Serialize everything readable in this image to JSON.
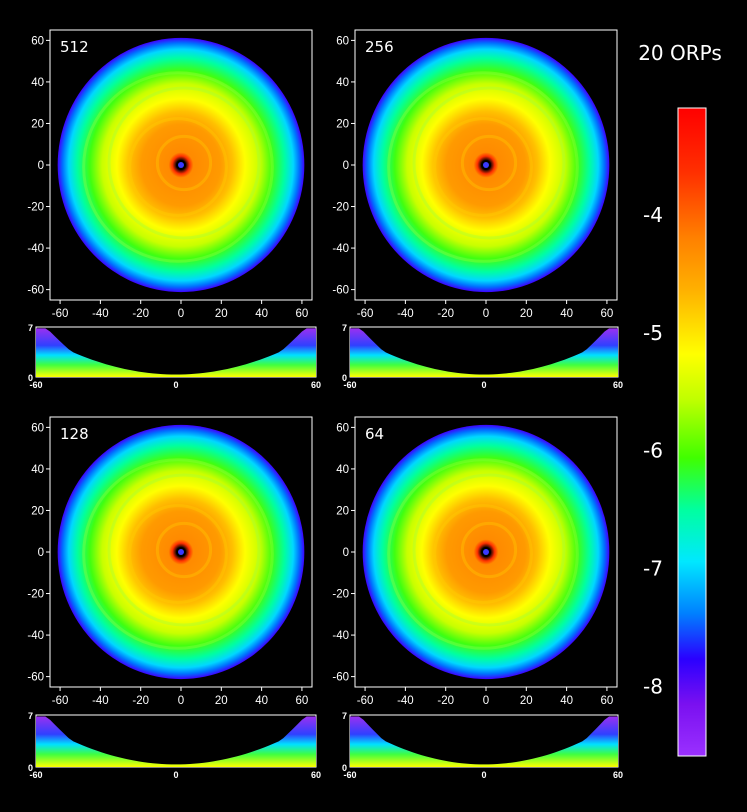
{
  "chart_data": {
    "type": "heatmap",
    "colorbar": {
      "title": "20 ORPs",
      "ticks": [
        -4,
        -5,
        -6,
        -7,
        -8
      ],
      "tick_labels": [
        "-4",
        "-5",
        "-6",
        "-7",
        "-8"
      ],
      "range": [
        -8.6,
        -3.1
      ],
      "colors": [
        "#7a00e0",
        "#a020f0",
        "#3000ff",
        "#0080ff",
        "#00e5ff",
        "#00ff80",
        "#40ff00",
        "#c0ff00",
        "#ffff00",
        "#ffb000",
        "#ff8000",
        "#ff3000",
        "#ff0000"
      ]
    },
    "panels": [
      {
        "label": "512",
        "face_on": {
          "xlim": [
            -65,
            65
          ],
          "ylim": [
            -65,
            65
          ],
          "x_ticks": [
            -60,
            -40,
            -20,
            0,
            20,
            40,
            60
          ],
          "y_ticks": [
            60,
            40,
            20,
            0,
            -20,
            -40,
            -60
          ],
          "x_tick_labels": [
            "-60",
            "-40",
            "-20",
            "0",
            "20",
            "40",
            "60"
          ],
          "y_tick_labels": [
            "60",
            "40",
            "20",
            "0",
            "-20",
            "-40",
            "-60"
          ]
        },
        "edge_on": {
          "xlim": [
            -60,
            60
          ],
          "ylim": [
            0,
            7
          ],
          "x_ticks": [
            -60,
            0,
            60
          ],
          "x_tick_labels": [
            "-60",
            "0",
            "60"
          ],
          "y_ticks": [
            7,
            0
          ],
          "y_tick_labels": [
            "7",
            "0"
          ]
        }
      },
      {
        "label": "256",
        "face_on": {
          "xlim": [
            -65,
            65
          ],
          "ylim": [
            -65,
            65
          ],
          "x_ticks": [
            -60,
            -40,
            -20,
            0,
            20,
            40,
            60
          ],
          "y_ticks": [
            60,
            40,
            20,
            0,
            -20,
            -40,
            -60
          ],
          "x_tick_labels": [
            "-60",
            "-40",
            "-20",
            "0",
            "20",
            "40",
            "60"
          ],
          "y_tick_labels": [
            "60",
            "40",
            "20",
            "0",
            "-20",
            "-40",
            "-60"
          ]
        },
        "edge_on": {
          "xlim": [
            -60,
            60
          ],
          "ylim": [
            0,
            7
          ],
          "x_ticks": [
            -60,
            0,
            60
          ],
          "x_tick_labels": [
            "-60",
            "0",
            "60"
          ],
          "y_ticks": [
            7,
            0
          ],
          "y_tick_labels": [
            "7",
            "0"
          ]
        }
      },
      {
        "label": "128",
        "face_on": {
          "xlim": [
            -65,
            65
          ],
          "ylim": [
            -65,
            65
          ],
          "x_ticks": [
            -60,
            -40,
            -20,
            0,
            20,
            40,
            60
          ],
          "y_ticks": [
            60,
            40,
            20,
            0,
            -20,
            -40,
            -60
          ],
          "x_tick_labels": [
            "-60",
            "-40",
            "-20",
            "0",
            "20",
            "40",
            "60"
          ],
          "y_tick_labels": [
            "60",
            "40",
            "20",
            "0",
            "-20",
            "-40",
            "-60"
          ]
        },
        "edge_on": {
          "xlim": [
            -60,
            60
          ],
          "ylim": [
            0,
            7
          ],
          "x_ticks": [
            -60,
            0,
            60
          ],
          "x_tick_labels": [
            "-60",
            "0",
            "60"
          ],
          "y_ticks": [
            7,
            0
          ],
          "y_tick_labels": [
            "7",
            "0"
          ]
        }
      },
      {
        "label": "64",
        "face_on": {
          "xlim": [
            -65,
            65
          ],
          "ylim": [
            -65,
            65
          ],
          "x_ticks": [
            -60,
            -40,
            -20,
            0,
            20,
            40,
            60
          ],
          "y_ticks": [
            60,
            40,
            20,
            0,
            -20,
            -40,
            -60
          ],
          "x_tick_labels": [
            "-60",
            "-40",
            "-20",
            "0",
            "20",
            "40",
            "60"
          ],
          "y_tick_labels": [
            "60",
            "40",
            "20",
            "0",
            "-20",
            "-40",
            "-60"
          ]
        },
        "edge_on": {
          "xlim": [
            -60,
            60
          ],
          "ylim": [
            0,
            7
          ],
          "x_ticks": [
            -60,
            0,
            60
          ],
          "x_tick_labels": [
            "-60",
            "0",
            "60"
          ],
          "y_ticks": [
            7,
            0
          ],
          "y_tick_labels": [
            "7",
            "0"
          ]
        }
      }
    ]
  }
}
